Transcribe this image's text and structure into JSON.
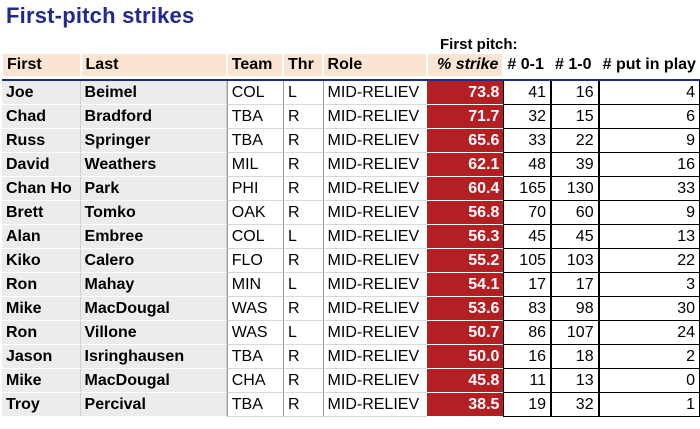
{
  "title": "First-pitch strikes",
  "group_label": "First pitch:",
  "headers": {
    "first": "First",
    "last": "Last",
    "team": "Team",
    "thr": "Thr",
    "role": "Role",
    "pct_strike": "% strike",
    "n01": "# 0-1",
    "n10": "# 1-0",
    "put_in_play": "# put in play"
  },
  "rows": [
    {
      "first": "Joe",
      "last": "Beimel",
      "team": "COL",
      "thr": "L",
      "role": "MID-RELIEV",
      "pct": "73.8",
      "n01": "41",
      "n10": "16",
      "pip": "4"
    },
    {
      "first": "Chad",
      "last": "Bradford",
      "team": "TBA",
      "thr": "R",
      "role": "MID-RELIEV",
      "pct": "71.7",
      "n01": "32",
      "n10": "15",
      "pip": "6"
    },
    {
      "first": "Russ",
      "last": "Springer",
      "team": "TBA",
      "thr": "R",
      "role": "MID-RELIEV",
      "pct": "65.6",
      "n01": "33",
      "n10": "22",
      "pip": "9"
    },
    {
      "first": "David",
      "last": "Weathers",
      "team": "MIL",
      "thr": "R",
      "role": "MID-RELIEV",
      "pct": "62.1",
      "n01": "48",
      "n10": "39",
      "pip": "16"
    },
    {
      "first": "Chan Ho",
      "last": "Park",
      "team": "PHI",
      "thr": "R",
      "role": "MID-RELIEV",
      "pct": "60.4",
      "n01": "165",
      "n10": "130",
      "pip": "33"
    },
    {
      "first": "Brett",
      "last": "Tomko",
      "team": "OAK",
      "thr": "R",
      "role": "MID-RELIEV",
      "pct": "56.8",
      "n01": "70",
      "n10": "60",
      "pip": "9"
    },
    {
      "first": "Alan",
      "last": "Embree",
      "team": "COL",
      "thr": "L",
      "role": "MID-RELIEV",
      "pct": "56.3",
      "n01": "45",
      "n10": "45",
      "pip": "13"
    },
    {
      "first": "Kiko",
      "last": "Calero",
      "team": "FLO",
      "thr": "R",
      "role": "MID-RELIEV",
      "pct": "55.2",
      "n01": "105",
      "n10": "103",
      "pip": "22"
    },
    {
      "first": "Ron",
      "last": "Mahay",
      "team": "MIN",
      "thr": "L",
      "role": "MID-RELIEV",
      "pct": "54.1",
      "n01": "17",
      "n10": "17",
      "pip": "3"
    },
    {
      "first": "Mike",
      "last": "MacDougal",
      "team": "WAS",
      "thr": "R",
      "role": "MID-RELIEV",
      "pct": "53.6",
      "n01": "83",
      "n10": "98",
      "pip": "30"
    },
    {
      "first": "Ron",
      "last": "Villone",
      "team": "WAS",
      "thr": "L",
      "role": "MID-RELIEV",
      "pct": "50.7",
      "n01": "86",
      "n10": "107",
      "pip": "24"
    },
    {
      "first": "Jason",
      "last": "Isringhausen",
      "team": "TBA",
      "thr": "R",
      "role": "MID-RELIEV",
      "pct": "50.0",
      "n01": "16",
      "n10": "18",
      "pip": "2"
    },
    {
      "first": "Mike",
      "last": "MacDougal",
      "team": "CHA",
      "thr": "R",
      "role": "MID-RELIEV",
      "pct": "45.8",
      "n01": "11",
      "n10": "13",
      "pip": "0"
    },
    {
      "first": "Troy",
      "last": "Percival",
      "team": "TBA",
      "thr": "R",
      "role": "MID-RELIEV",
      "pct": "38.5",
      "n01": "19",
      "n10": "32",
      "pip": "1"
    }
  ],
  "colors": {
    "title": "#1f2a8a",
    "header_bg": "#fbe4d1",
    "name_bg": "#ececec",
    "pct_bg": "#b41f24"
  }
}
